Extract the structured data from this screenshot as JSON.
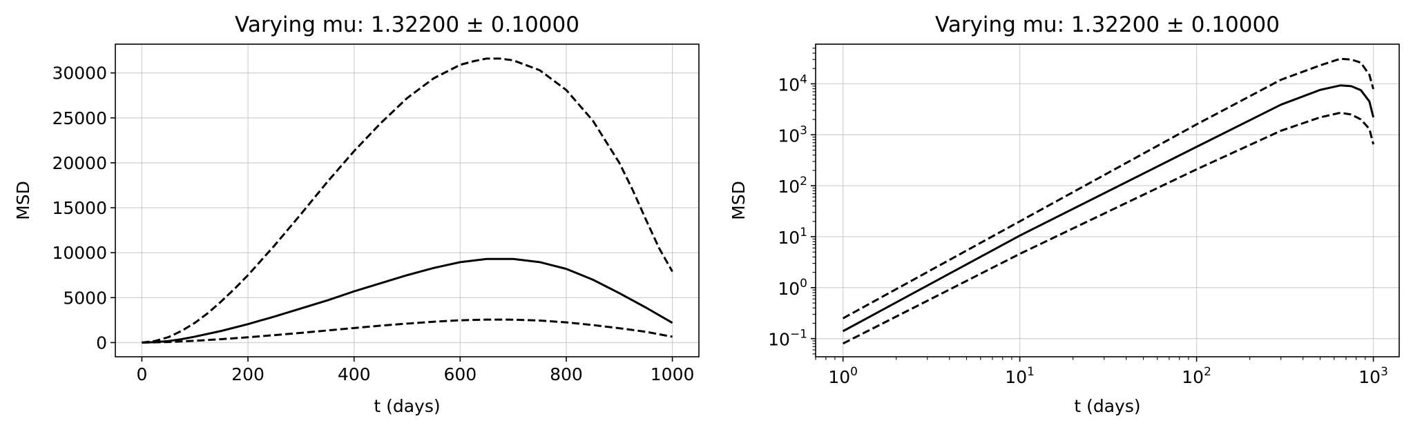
{
  "chart_data": [
    {
      "type": "line",
      "title": "Varying mu: 1.32200 ± 0.10000",
      "xlabel": "t (days)",
      "ylabel": "MSD",
      "xscale": "linear",
      "yscale": "linear",
      "xlim": [
        -50,
        1050
      ],
      "ylim": [
        -1580,
        33200
      ],
      "xticks": [
        0,
        200,
        400,
        600,
        800,
        1000
      ],
      "yticks": [
        0,
        5000,
        10000,
        15000,
        20000,
        25000,
        30000
      ],
      "grid": true,
      "color": "#000000",
      "series": [
        {
          "style": "dashed",
          "x": [
            0,
            25,
            50,
            75,
            100,
            125,
            150,
            175,
            200,
            250,
            300,
            350,
            400,
            450,
            500,
            550,
            600,
            625,
            650,
            675,
            700,
            750,
            800,
            850,
            900,
            925,
            950,
            975,
            1000
          ],
          "y": [
            0,
            180,
            600,
            1300,
            2200,
            3300,
            4600,
            6000,
            7500,
            10800,
            14300,
            17900,
            21300,
            24400,
            27200,
            29400,
            30900,
            31300,
            31600,
            31600,
            31400,
            30300,
            28100,
            24700,
            20000,
            17000,
            13700,
            10500,
            7900
          ]
        },
        {
          "style": "solid",
          "x": [
            0,
            25,
            50,
            75,
            100,
            150,
            200,
            250,
            300,
            350,
            400,
            450,
            500,
            550,
            600,
            650,
            700,
            750,
            800,
            850,
            900,
            950,
            1000
          ],
          "y": [
            0,
            50,
            170,
            380,
            660,
            1300,
            2050,
            2900,
            3800,
            4700,
            5700,
            6600,
            7500,
            8300,
            8950,
            9300,
            9300,
            8950,
            8200,
            7000,
            5500,
            3900,
            2200
          ]
        },
        {
          "style": "dashed",
          "x": [
            0,
            50,
            100,
            150,
            200,
            250,
            300,
            350,
            400,
            450,
            500,
            550,
            600,
            650,
            700,
            750,
            800,
            850,
            900,
            950,
            1000
          ],
          "y": [
            0,
            60,
            200,
            380,
            590,
            830,
            1080,
            1350,
            1620,
            1880,
            2110,
            2320,
            2480,
            2560,
            2550,
            2450,
            2250,
            1950,
            1600,
            1200,
            650
          ]
        }
      ]
    },
    {
      "type": "line",
      "title": "Varying mu: 1.32200 ± 0.10000",
      "xlabel": "t (days)",
      "ylabel": "MSD",
      "xscale": "log",
      "yscale": "log",
      "xlim": [
        0.7,
        1400
      ],
      "ylim": [
        0.044,
        60000
      ],
      "xticks": [
        {
          "base": "10",
          "exp": "0"
        },
        {
          "base": "10",
          "exp": "1"
        },
        {
          "base": "10",
          "exp": "2"
        },
        {
          "base": "10",
          "exp": "3"
        }
      ],
      "yticks": [
        {
          "base": "10",
          "exp": "−1"
        },
        {
          "base": "10",
          "exp": "0"
        },
        {
          "base": "10",
          "exp": "1"
        },
        {
          "base": "10",
          "exp": "2"
        },
        {
          "base": "10",
          "exp": "3"
        },
        {
          "base": "10",
          "exp": "4"
        }
      ],
      "grid": true,
      "color": "#000000",
      "series": [
        {
          "style": "dashed",
          "x": [
            1,
            10,
            100,
            300,
            500,
            650,
            750,
            850,
            950,
            1000
          ],
          "y": [
            0.25,
            20,
            1600,
            12000,
            23000,
            31000,
            30000,
            26000,
            15000,
            7900
          ]
        },
        {
          "style": "solid",
          "x": [
            1,
            10,
            100,
            300,
            500,
            650,
            750,
            850,
            950,
            1000
          ],
          "y": [
            0.14,
            10.5,
            580,
            3900,
            7600,
            9300,
            9000,
            7500,
            4500,
            2200
          ]
        },
        {
          "style": "dashed",
          "x": [
            1,
            10,
            100,
            300,
            500,
            650,
            750,
            850,
            950,
            1000
          ],
          "y": [
            0.08,
            4.6,
            210,
            1200,
            2200,
            2700,
            2500,
            2000,
            1300,
            650
          ]
        }
      ]
    }
  ]
}
